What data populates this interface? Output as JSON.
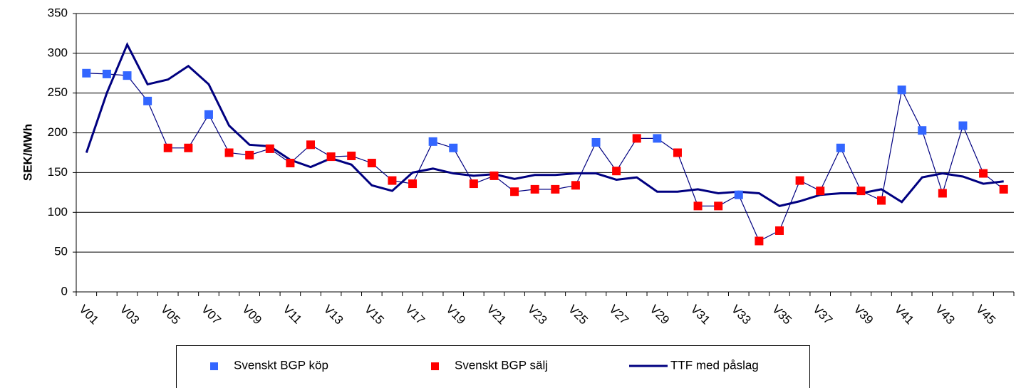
{
  "chart_data": {
    "type": "line",
    "y_label": "SEK/MWh",
    "categories": [
      "V01",
      null,
      "V03",
      null,
      "V05",
      null,
      "V07",
      null,
      "V09",
      null,
      "V11",
      null,
      "V13",
      null,
      "V15",
      null,
      "V17",
      null,
      "V19",
      null,
      "V21",
      null,
      "V23",
      null,
      "V25",
      null,
      "V27",
      null,
      "V29",
      null,
      "V31",
      null,
      "V33",
      null,
      "V35",
      null,
      "V37",
      null,
      "V39",
      null,
      "V41",
      null,
      "V43",
      null,
      "V45",
      null
    ],
    "series": [
      {
        "name": "Svenskt BGP köp",
        "color": "#3366ff",
        "marker": "square",
        "values": [
          275,
          274,
          272,
          240,
          null,
          null,
          223,
          null,
          null,
          null,
          null,
          null,
          null,
          null,
          null,
          null,
          null,
          189,
          181,
          null,
          null,
          null,
          null,
          null,
          null,
          188,
          null,
          null,
          193,
          null,
          null,
          null,
          122,
          null,
          null,
          null,
          null,
          181,
          null,
          null,
          254,
          203,
          null,
          209,
          null,
          null
        ]
      },
      {
        "name": "Svenskt BGP sälj",
        "color": "#ff0000",
        "marker": "square",
        "values": [
          null,
          null,
          null,
          null,
          181,
          181,
          null,
          175,
          172,
          180,
          162,
          185,
          170,
          171,
          162,
          140,
          136,
          null,
          null,
          136,
          146,
          126,
          129,
          129,
          134,
          null,
          152,
          193,
          null,
          175,
          108,
          108,
          null,
          64,
          77,
          140,
          127,
          null,
          127,
          115,
          null,
          null,
          124,
          null,
          149,
          129
        ]
      },
      {
        "name": "TTF med påslag",
        "color": "#000080",
        "marker": "line",
        "values": [
          175,
          250,
          311,
          261,
          267,
          284,
          261,
          209,
          185,
          183,
          166,
          157,
          168,
          160,
          134,
          127,
          150,
          155,
          149,
          146,
          148,
          142,
          147,
          147,
          149,
          149,
          141,
          144,
          126,
          126,
          129,
          124,
          126,
          124,
          108,
          114,
          122,
          124,
          124,
          129,
          113,
          144,
          149,
          145,
          136,
          139
        ]
      }
    ],
    "connector_color": "#000080",
    "ylim": [
      0,
      350
    ],
    "yticks": [
      0,
      50,
      100,
      150,
      200,
      250,
      300,
      350
    ],
    "grid": true,
    "legend": "bottom"
  }
}
